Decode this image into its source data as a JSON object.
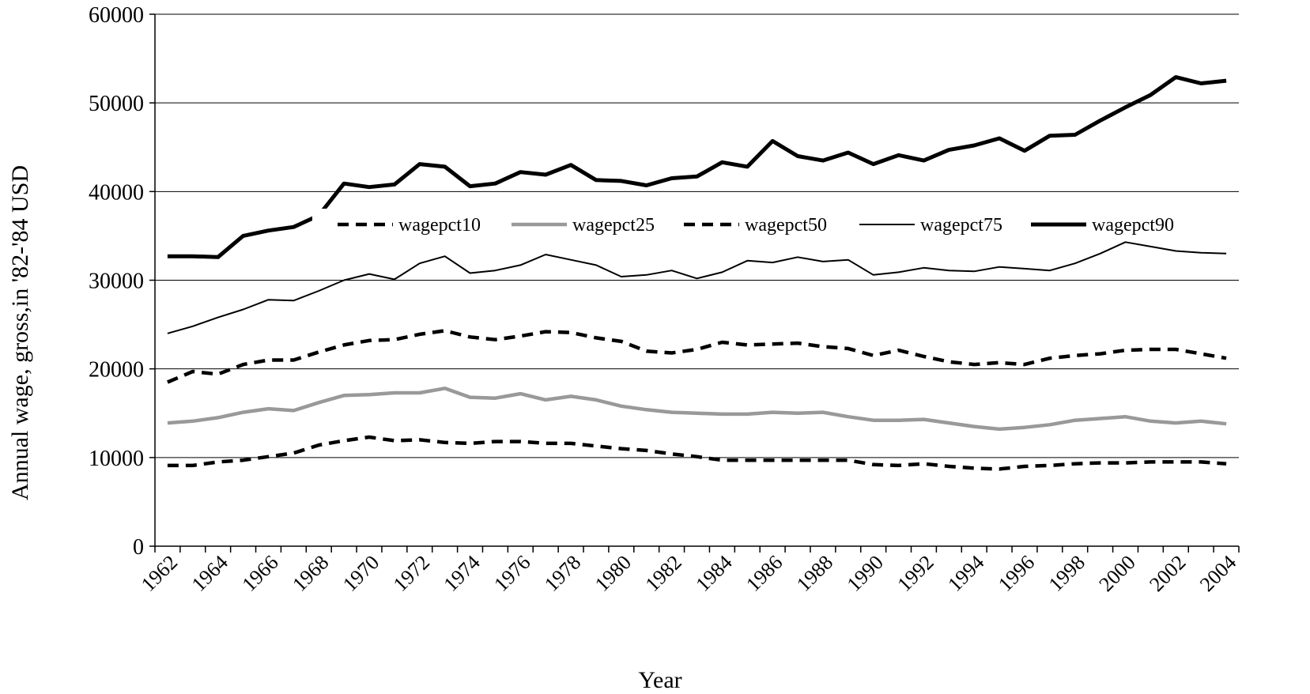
{
  "chart_data": {
    "type": "line",
    "xlabel": "Year",
    "ylabel": "Annual wage, gross,in '82-'84 USD",
    "ylim": [
      0,
      60000
    ],
    "yticks": [
      0,
      10000,
      20000,
      30000,
      40000,
      50000,
      60000
    ],
    "x": [
      1962,
      1963,
      1964,
      1965,
      1966,
      1967,
      1968,
      1969,
      1970,
      1971,
      1972,
      1973,
      1974,
      1975,
      1976,
      1977,
      1978,
      1979,
      1980,
      1981,
      1982,
      1983,
      1984,
      1985,
      1986,
      1987,
      1988,
      1989,
      1990,
      1991,
      1992,
      1993,
      1994,
      1995,
      1996,
      1997,
      1998,
      1999,
      2000,
      2001,
      2002,
      2003,
      2004
    ],
    "xticks": [
      1962,
      1964,
      1966,
      1968,
      1970,
      1972,
      1974,
      1976,
      1978,
      1980,
      1982,
      1984,
      1986,
      1988,
      1990,
      1992,
      1994,
      1996,
      1998,
      2000,
      2002,
      2004
    ],
    "grid": "horizontal",
    "legend_position": "top-center",
    "series": [
      {
        "name": "wagepct10",
        "color": "#000000",
        "style": "dashed",
        "values": [
          9100,
          9100,
          9500,
          9700,
          10100,
          10500,
          11400,
          11900,
          12300,
          11900,
          12000,
          11700,
          11600,
          11800,
          11800,
          11600,
          11600,
          11300,
          11000,
          10800,
          10400,
          10100,
          9700,
          9700,
          9700,
          9700,
          9700,
          9700,
          9200,
          9100,
          9300,
          9000,
          8800,
          8700,
          9000,
          9100,
          9300,
          9400,
          9400,
          9500,
          9500,
          9500,
          9300
        ]
      },
      {
        "name": "wagepct25",
        "color": "#999999",
        "style": "solid",
        "values": [
          13900,
          14100,
          14500,
          15100,
          15500,
          15300,
          16200,
          17000,
          17100,
          17300,
          17300,
          17800,
          16800,
          16700,
          17200,
          16500,
          16900,
          16500,
          15800,
          15400,
          15100,
          15000,
          14900,
          14900,
          15100,
          15000,
          15100,
          14600,
          14200,
          14200,
          14300,
          13900,
          13500,
          13200,
          13400,
          13700,
          14200,
          14400,
          14600,
          14100,
          13900,
          14100,
          13800
        ]
      },
      {
        "name": "wagepct50",
        "color": "#000000",
        "style": "dashed",
        "values": [
          18500,
          19700,
          19400,
          20500,
          21000,
          21000,
          21900,
          22700,
          23200,
          23300,
          23900,
          24300,
          23600,
          23300,
          23700,
          24200,
          24100,
          23500,
          23100,
          22000,
          21800,
          22200,
          23000,
          22700,
          22800,
          22900,
          22500,
          22300,
          21500,
          22100,
          21400,
          20800,
          20500,
          20700,
          20500,
          21200,
          21500,
          21700,
          22100,
          22200,
          22200,
          21700,
          21200
        ]
      },
      {
        "name": "wagepct75",
        "color": "#000000",
        "style": "thin",
        "values": [
          24000,
          24800,
          25800,
          26700,
          27800,
          27700,
          28800,
          30000,
          30700,
          30100,
          31900,
          32700,
          30800,
          31100,
          31700,
          32900,
          32300,
          31700,
          30400,
          30600,
          31100,
          30200,
          30900,
          32200,
          32000,
          32600,
          32100,
          32300,
          30600,
          30900,
          31400,
          31100,
          31000,
          31500,
          31300,
          31100,
          31900,
          33000,
          34300,
          33800,
          33300,
          33100,
          33000
        ]
      },
      {
        "name": "wagepct90",
        "color": "#000000",
        "style": "thick",
        "values": [
          32700,
          32700,
          32600,
          35000,
          35600,
          36000,
          37300,
          40900,
          40500,
          40800,
          43100,
          42800,
          40600,
          40900,
          42200,
          41900,
          43000,
          41300,
          41200,
          40700,
          41500,
          41700,
          43300,
          42800,
          45700,
          44000,
          43500,
          44400,
          43100,
          44100,
          43500,
          44700,
          45200,
          46000,
          44600,
          46300,
          46400,
          48000,
          49500,
          50900,
          52900,
          52200,
          52500
        ]
      }
    ]
  }
}
